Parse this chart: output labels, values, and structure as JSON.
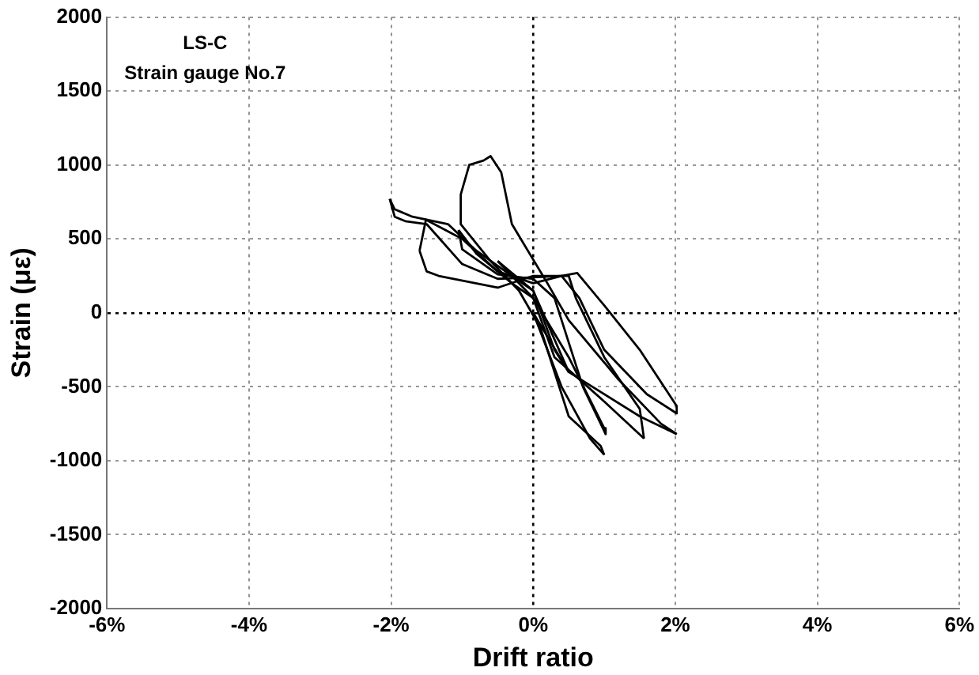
{
  "chart_data": {
    "type": "line",
    "xlabel": "Drift ratio",
    "ylabel": "Strain (με)",
    "annotations": [
      "LS-C",
      "Strain gauge No.7"
    ],
    "series": [
      {
        "color": "#000000",
        "x": [
          0,
          0.5
        ],
        "values": [
          0,
          -400
        ]
      },
      {
        "color": "#000000",
        "x": [
          0.5,
          0.3,
          0,
          -0.5
        ],
        "values": [
          -400,
          -250,
          150,
          350
        ]
      },
      {
        "color": "#000000",
        "x": [
          -0.5,
          -0.3,
          0,
          0.5,
          1.0,
          1.02
        ],
        "values": [
          350,
          250,
          100,
          -300,
          -780,
          -820
        ]
      },
      {
        "color": "#000000",
        "x": [
          1.02,
          0.7,
          0.3,
          0,
          -0.5,
          -1.0,
          -1.05
        ],
        "values": [
          -820,
          -500,
          100,
          230,
          260,
          430,
          560
        ]
      },
      {
        "color": "#000000",
        "x": [
          -1.05,
          -0.8,
          -0.3,
          0,
          0.3,
          1.0,
          1.56
        ],
        "values": [
          560,
          400,
          200,
          100,
          -300,
          -600,
          -850
        ]
      },
      {
        "color": "#000000",
        "x": [
          1.56,
          1.5,
          1.0,
          0.6,
          0.5,
          0,
          -0.5,
          -1.33,
          -1.5,
          -1.6
        ],
        "values": [
          -850,
          -650,
          -300,
          100,
          250,
          250,
          170,
          250,
          280,
          420
        ]
      },
      {
        "color": "#000000",
        "x": [
          -1.6,
          -1.51,
          -1.0,
          -0.5,
          0,
          0.4,
          0.62,
          1.0,
          1.5,
          2.02,
          2.02
        ],
        "values": [
          420,
          630,
          500,
          280,
          200,
          250,
          270,
          50,
          -250,
          -630,
          -680
        ]
      },
      {
        "color": "#000000",
        "x": [
          2.02,
          1.6,
          1.0,
          0.65,
          0.4,
          0,
          -0.5,
          -1.0,
          -1.5,
          -1.8,
          -1.95,
          -2.02
        ],
        "values": [
          -680,
          -550,
          -250,
          100,
          250,
          240,
          230,
          330,
          600,
          620,
          650,
          770
        ]
      },
      {
        "color": "#000000",
        "x": [
          -2.02,
          -1.95,
          -1.7,
          -1.2,
          -0.8,
          -0.3,
          0,
          0.5,
          1.5,
          2.02
        ],
        "values": [
          770,
          700,
          650,
          600,
          420,
          250,
          150,
          -400,
          -700,
          -820
        ]
      },
      {
        "color": "#000000",
        "x": [
          2.02,
          1.8,
          1.2,
          0.5,
          0.2,
          -0.3,
          -0.45,
          -0.6,
          -0.7,
          -0.9,
          -1.02,
          -1.02
        ],
        "values": [
          -820,
          -750,
          -450,
          -50,
          200,
          600,
          950,
          1060,
          1030,
          1000,
          800,
          600
        ]
      },
      {
        "color": "#000000",
        "x": [
          -1.02,
          -0.6,
          -0.2,
          0.1,
          0.5,
          0.95,
          1.0
        ],
        "values": [
          600,
          350,
          150,
          -100,
          -700,
          -900,
          -960
        ]
      },
      {
        "color": "#000000",
        "x": [
          1.0,
          0.8,
          0.4,
          0
        ],
        "values": [
          -960,
          -850,
          -500,
          0
        ]
      }
    ],
    "xlim": [
      -6,
      6
    ],
    "xticks": [
      {
        "value": -6,
        "label": "-6%"
      },
      {
        "value": -4,
        "label": "-4%"
      },
      {
        "value": -2,
        "label": "-2%"
      },
      {
        "value": 0,
        "label": "0%"
      },
      {
        "value": 2,
        "label": "2%"
      },
      {
        "value": 4,
        "label": "4%"
      },
      {
        "value": 6,
        "label": "6%"
      }
    ],
    "ylim": [
      -2000,
      2000
    ],
    "yticks": [
      -2000,
      -1500,
      -1000,
      -500,
      0,
      500,
      1000,
      1500,
      2000
    ],
    "grid": true,
    "legend": false,
    "marker": "none",
    "line_style": "solid"
  }
}
